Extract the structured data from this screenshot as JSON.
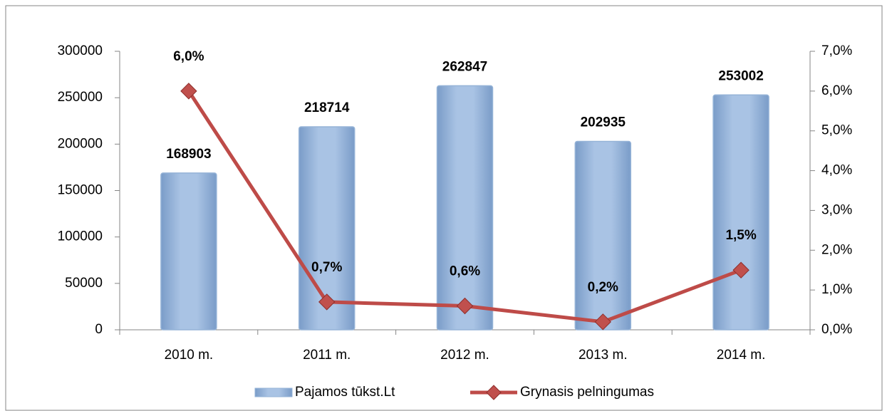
{
  "chart_data": {
    "type": "bar",
    "categories": [
      "2010 m.",
      "2011 m.",
      "2012 m.",
      "2013 m.",
      "2014 m."
    ],
    "series": [
      {
        "name": "Pajamos tūkst.Lt",
        "type": "bar",
        "color": "#95b3d7",
        "values": [
          168903,
          218714,
          262847,
          202935,
          253002
        ]
      },
      {
        "name": "Grynasis pelningumas",
        "type": "line",
        "axis": "y2",
        "color": "#be4b48",
        "values": [
          6.0,
          0.7,
          0.6,
          0.2,
          1.5
        ],
        "value_labels": [
          "6,0%",
          "0,7%",
          "0,6%",
          "0,2%",
          "1,5%"
        ]
      }
    ],
    "ylim": [
      0,
      300000
    ],
    "yticks": [
      0,
      50000,
      100000,
      150000,
      200000,
      250000,
      300000
    ],
    "y2lim": [
      0,
      7
    ],
    "y2ticks": [
      {
        "value": 0,
        "label": "0,0%"
      },
      {
        "value": 1,
        "label": "1,0%"
      },
      {
        "value": 2,
        "label": "2,0%"
      },
      {
        "value": 3,
        "label": "3,0%"
      },
      {
        "value": 4,
        "label": "4,0%"
      },
      {
        "value": 5,
        "label": "5,0%"
      },
      {
        "value": 6,
        "label": "6,0%"
      },
      {
        "value": 7,
        "label": "7,0%"
      }
    ],
    "legend": "bottom"
  }
}
